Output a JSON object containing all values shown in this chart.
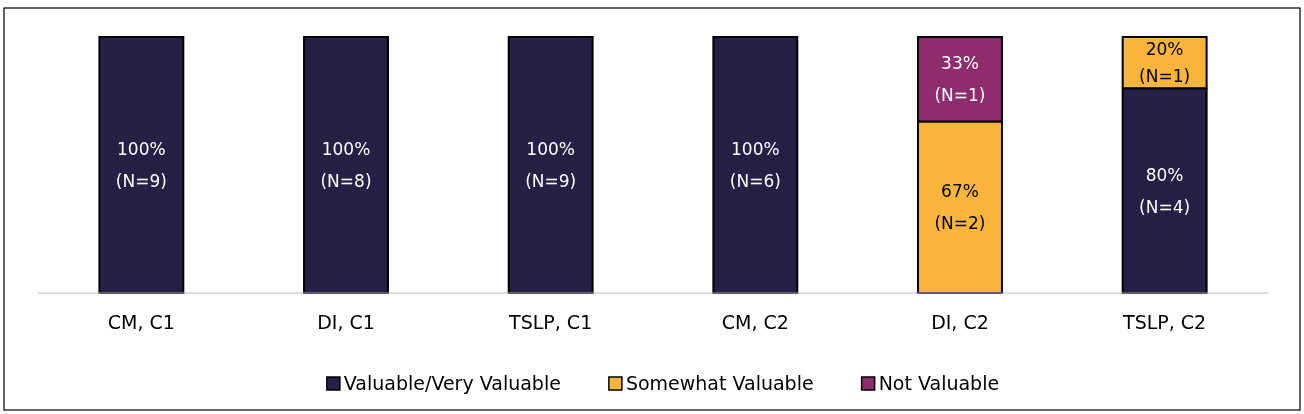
{
  "chart_data": {
    "type": "bar",
    "stacked": true,
    "categories": [
      "CM, C1",
      "DI, C1",
      "TSLP, C1",
      "CM, C2",
      "DI, C2",
      "TSLP, C2"
    ],
    "series": [
      {
        "name": "Valuable/Very Valuable",
        "color": "#252045",
        "values": [
          100,
          100,
          100,
          100,
          null,
          80
        ],
        "value_labels": [
          "100%\n(N=9)",
          "100%\n(N=8)",
          "100%\n(N=9)",
          "100%\n(N=6)",
          null,
          "80%\n(N=4)"
        ]
      },
      {
        "name": "Somewhat Valuable",
        "color": "#fbb53b",
        "values": [
          null,
          null,
          null,
          null,
          67,
          20
        ],
        "value_labels": [
          null,
          null,
          null,
          null,
          "67%\n(N=2)",
          "20%\n(N=1)"
        ]
      },
      {
        "name": "Not Valuable",
        "color": "#8e2c6e",
        "values": [
          null,
          null,
          null,
          null,
          33,
          null
        ],
        "value_labels": [
          null,
          null,
          null,
          null,
          "33%\n(N=1)",
          null
        ]
      }
    ],
    "legend": "bottom"
  }
}
